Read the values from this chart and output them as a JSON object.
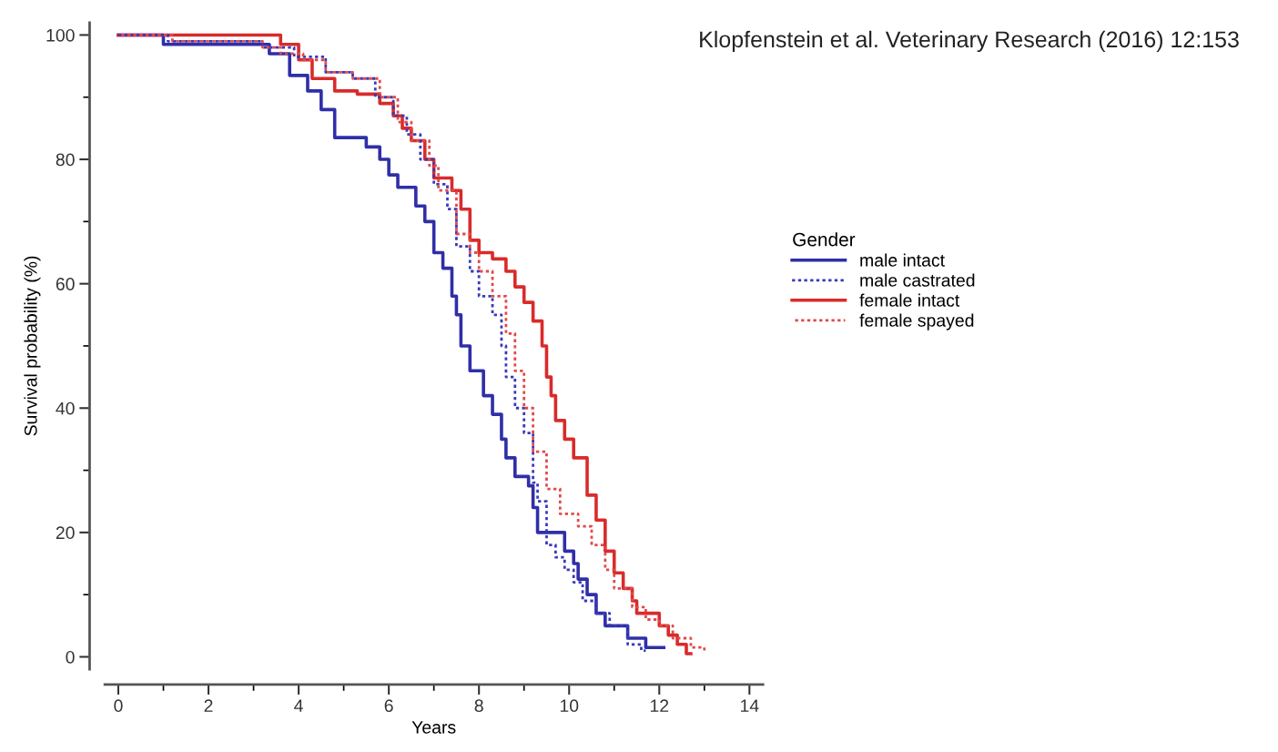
{
  "chart_data": {
    "type": "step",
    "xlabel": "Years",
    "ylabel": "Survival probability (%)",
    "legend_title": "Gender",
    "legend": "right",
    "annotations": [
      "Klopfenstein et al. Veterinary Research (2016) 12:153"
    ],
    "xlim": [
      -0.3,
      14.3
    ],
    "ylim": [
      -2,
      102
    ],
    "xticks": [
      0,
      2,
      4,
      6,
      8,
      10,
      12,
      14
    ],
    "yticks": [
      0,
      20,
      40,
      60,
      80,
      100
    ],
    "grid": false,
    "series": [
      {
        "name": "male intact",
        "color": "#2f2fa8",
        "line_style": "solid",
        "x": [
          0,
          1.0,
          3.35,
          3.8,
          4.2,
          4.5,
          4.8,
          5.5,
          5.8,
          6.0,
          6.2,
          6.6,
          6.8,
          7.0,
          7.2,
          7.4,
          7.5,
          7.6,
          7.8,
          8.1,
          8.3,
          8.5,
          8.6,
          8.8,
          9.1,
          9.2,
          9.3,
          9.8,
          9.9,
          10.1,
          10.2,
          10.4,
          10.6,
          10.8,
          11.3,
          11.7,
          12.1
        ],
        "values": [
          100,
          98.5,
          97,
          93.5,
          91,
          88,
          83.5,
          82,
          80,
          77.5,
          75.5,
          72.5,
          70,
          65,
          62.5,
          58,
          55,
          50,
          46,
          42,
          39,
          35,
          32,
          29,
          27.5,
          24,
          20,
          20,
          17,
          15,
          12.5,
          10,
          7,
          5,
          3,
          1.5,
          1.5
        ]
      },
      {
        "name": "male castrated",
        "color": "#3a3ab8",
        "line_style": "dotted",
        "x": [
          0,
          1.1,
          3.2,
          3.9,
          4.6,
          5.2,
          5.7,
          6.1,
          6.4,
          6.7,
          7.0,
          7.3,
          7.5,
          7.8,
          8.0,
          8.3,
          8.5,
          8.6,
          8.8,
          9.0,
          9.2,
          9.3,
          9.5,
          9.7,
          9.9,
          10.1,
          10.3,
          10.6,
          10.9,
          11.3,
          11.6,
          11.7
        ],
        "values": [
          100,
          99,
          98,
          96.5,
          94,
          93,
          90,
          87,
          84,
          80,
          76,
          72,
          66,
          62,
          58,
          55,
          50,
          45,
          40,
          36,
          28,
          25,
          18,
          16,
          14,
          12,
          9,
          7,
          5,
          2,
          1,
          1
        ]
      },
      {
        "name": "female intact",
        "color": "#d92b2b",
        "line_style": "solid",
        "x": [
          0,
          3.5,
          3.6,
          4.0,
          4.3,
          4.8,
          5.3,
          5.8,
          6.1,
          6.3,
          6.5,
          6.8,
          7.0,
          7.4,
          7.6,
          7.8,
          8.0,
          8.3,
          8.6,
          8.8,
          9.0,
          9.2,
          9.4,
          9.5,
          9.6,
          9.7,
          9.9,
          10.1,
          10.4,
          10.6,
          10.8,
          11.0,
          11.2,
          11.4,
          11.5,
          12.0,
          12.2,
          12.4,
          12.6,
          12.7
        ],
        "values": [
          100,
          100,
          98.5,
          96,
          93,
          91,
          90.5,
          89,
          87,
          85,
          83,
          80,
          77,
          75,
          72,
          67,
          65,
          64,
          62,
          59.5,
          57,
          54,
          50,
          45,
          42,
          38,
          35,
          32,
          26,
          22,
          17,
          13.5,
          11,
          9,
          7,
          5,
          3.5,
          2,
          0.5,
          0.5
        ]
      },
      {
        "name": "female spayed",
        "color": "#e04a4a",
        "line_style": "dotted",
        "x": [
          0,
          1.2,
          3.2,
          3.6,
          4.1,
          4.6,
          5.2,
          5.8,
          6.2,
          6.5,
          6.9,
          7.1,
          7.5,
          7.8,
          8.0,
          8.3,
          8.6,
          8.8,
          9.0,
          9.2,
          9.5,
          9.8,
          10.2,
          10.5,
          10.8,
          11.0,
          11.4,
          11.7,
          12.0,
          12.3,
          12.7,
          13.0
        ],
        "values": [
          100,
          99,
          98,
          97,
          96,
          94,
          93,
          90,
          86,
          83,
          79,
          75,
          68,
          65,
          62,
          58,
          52,
          46,
          40,
          33,
          27,
          23,
          21,
          18,
          14,
          11,
          8,
          6,
          5,
          3,
          1.5,
          0.5
        ]
      }
    ]
  }
}
